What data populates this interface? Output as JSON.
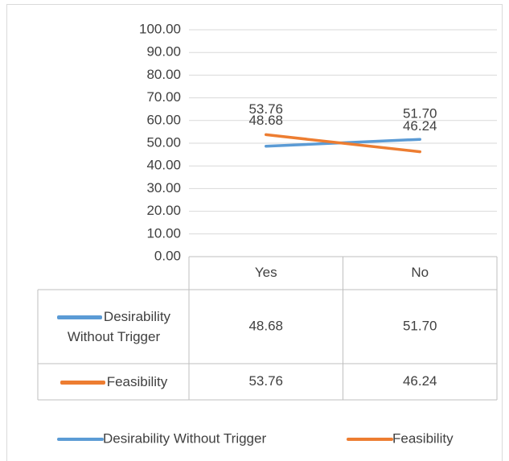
{
  "chart_data": {
    "type": "line",
    "categories": [
      "Yes",
      "No"
    ],
    "series": [
      {
        "name": "Desirability Without Trigger",
        "color": "#5b9bd5",
        "values": [
          48.68,
          51.7
        ],
        "value_labels": [
          "48.68",
          "51.70"
        ]
      },
      {
        "name": "Feasibility",
        "color": "#ed7d31",
        "values": [
          53.76,
          46.24
        ],
        "value_labels": [
          "53.76",
          "46.24"
        ]
      }
    ],
    "ylim": [
      0,
      100
    ],
    "yticks": [
      {
        "value": 0,
        "label": "0.00"
      },
      {
        "value": 10,
        "label": "10.00"
      },
      {
        "value": 20,
        "label": "20.00"
      },
      {
        "value": 30,
        "label": "30.00"
      },
      {
        "value": 40,
        "label": "40.00"
      },
      {
        "value": 50,
        "label": "50.00"
      },
      {
        "value": 60,
        "label": "60.00"
      },
      {
        "value": 70,
        "label": "70.00"
      },
      {
        "value": 80,
        "label": "80.00"
      },
      {
        "value": 90,
        "label": "90.00"
      },
      {
        "value": 100,
        "label": "100.00"
      }
    ],
    "grid": true,
    "legend": "bottom",
    "data_table": true
  }
}
